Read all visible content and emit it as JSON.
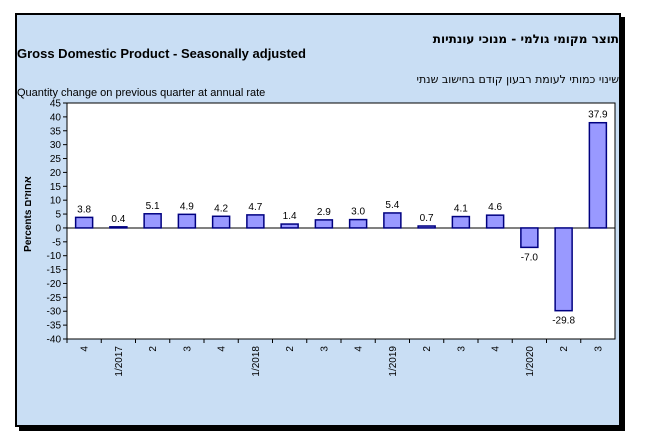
{
  "chart_data": {
    "type": "bar",
    "title_hebrew": "תוצר מקומי גולמי - מנוכי עונתיות",
    "title": "Gross Domestic Product - Seasonally adjusted",
    "subtitle_hebrew": "שינוי כמותי לעומת רבעון קודם בחישוב שנתי",
    "subtitle": "Quantity change on previous quarter at annual rate",
    "ylabel": "Percents אחוזים",
    "xlabel": "",
    "ylim": [
      -40,
      45
    ],
    "ytick_step": 5,
    "grid": false,
    "bar_color": "#9999ff",
    "bar_outline": "#000080",
    "plot_background": "#ffffff",
    "chart_background": "#c9def4",
    "categories": [
      "4",
      "1/2017",
      "2",
      "3",
      "4",
      "1/2018",
      "2",
      "3",
      "4",
      "1/2019",
      "2",
      "3",
      "4",
      "1/2020",
      "2",
      "3"
    ],
    "values": [
      3.8,
      0.4,
      5.1,
      4.9,
      4.2,
      4.7,
      1.4,
      2.9,
      3.0,
      5.4,
      0.7,
      4.1,
      4.6,
      -7.0,
      -29.8,
      37.9
    ],
    "value_labels": [
      "3.8",
      "0.4",
      "5.1",
      "4.9",
      "4.2",
      "4.7",
      "1.4",
      "2.9",
      "3.0",
      "5.4",
      "0.7",
      "4.1",
      "4.6",
      "-7.0",
      "-29.8",
      "37.9"
    ]
  }
}
